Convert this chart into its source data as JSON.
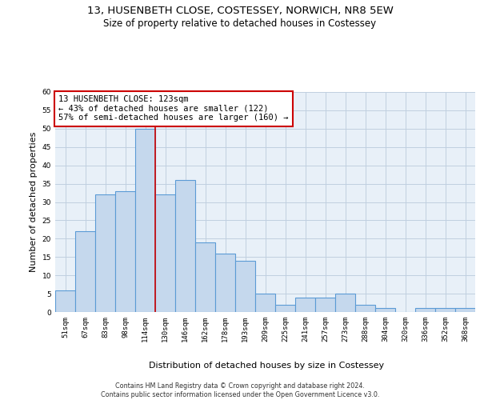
{
  "title_line1": "13, HUSENBETH CLOSE, COSTESSEY, NORWICH, NR8 5EW",
  "title_line2": "Size of property relative to detached houses in Costessey",
  "xlabel": "Distribution of detached houses by size in Costessey",
  "ylabel": "Number of detached properties",
  "bin_labels": [
    "51sqm",
    "67sqm",
    "83sqm",
    "98sqm",
    "114sqm",
    "130sqm",
    "146sqm",
    "162sqm",
    "178sqm",
    "193sqm",
    "209sqm",
    "225sqm",
    "241sqm",
    "257sqm",
    "273sqm",
    "288sqm",
    "304sqm",
    "320sqm",
    "336sqm",
    "352sqm",
    "368sqm"
  ],
  "bar_values": [
    6,
    22,
    32,
    33,
    50,
    32,
    36,
    19,
    16,
    14,
    5,
    2,
    4,
    4,
    5,
    2,
    1,
    0,
    1,
    1,
    1
  ],
  "bar_color": "#c5d8ed",
  "bar_edge_color": "#5b9bd5",
  "grid_color": "#c0cfe0",
  "background_color": "#e8f0f8",
  "vline_x": 4.5,
  "vline_color": "#cc0000",
  "annotation_text": "13 HUSENBETH CLOSE: 123sqm\n← 43% of detached houses are smaller (122)\n57% of semi-detached houses are larger (160) →",
  "annotation_box_color": "#ffffff",
  "annotation_box_edge_color": "#cc0000",
  "ylim": [
    0,
    60
  ],
  "yticks": [
    0,
    5,
    10,
    15,
    20,
    25,
    30,
    35,
    40,
    45,
    50,
    55,
    60
  ],
  "footer_text": "Contains HM Land Registry data © Crown copyright and database right 2024.\nContains public sector information licensed under the Open Government Licence v3.0.",
  "title_fontsize": 9.5,
  "subtitle_fontsize": 8.5,
  "tick_fontsize": 6.5,
  "ylabel_fontsize": 8,
  "xlabel_fontsize": 8,
  "annotation_fontsize": 7.5,
  "footer_fontsize": 5.8
}
